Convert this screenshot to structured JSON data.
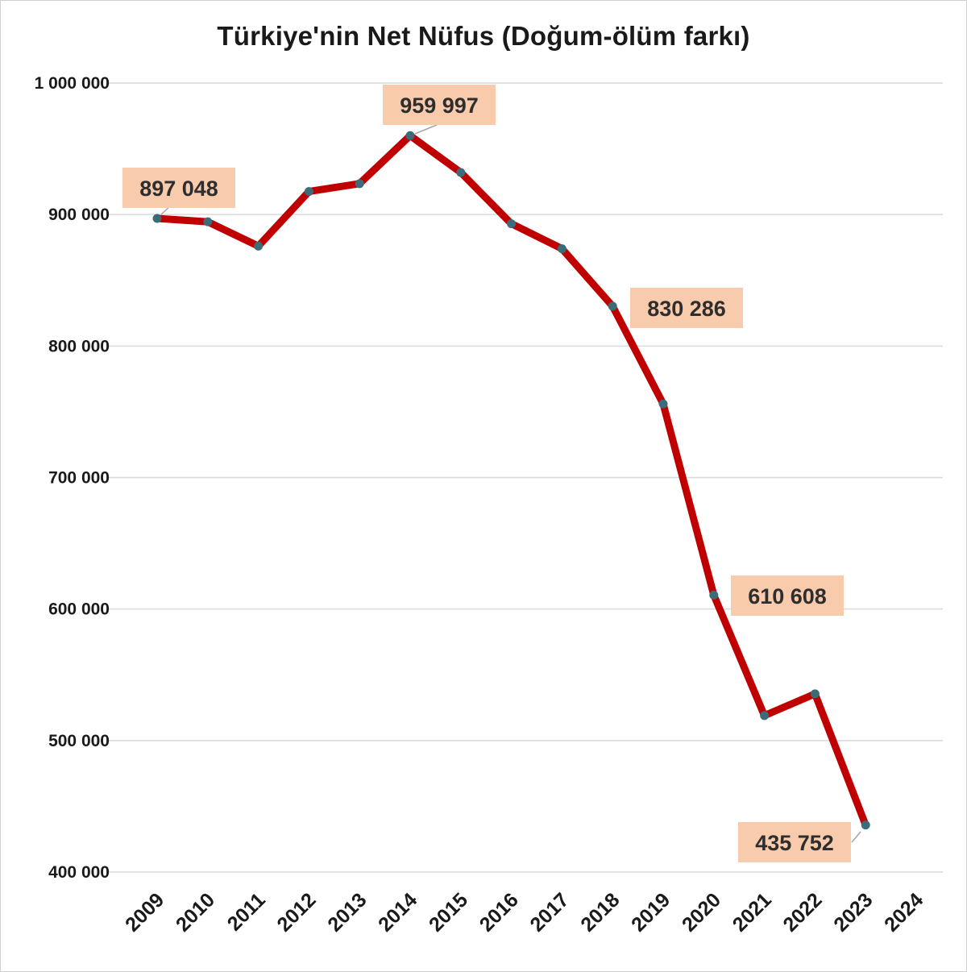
{
  "chart_data": {
    "type": "line",
    "title": "Türkiye'nin Net Nüfus  (Doğum-ölüm farkı)",
    "xlabel": "",
    "ylabel": "",
    "categories": [
      "2009",
      "2010",
      "2011",
      "2012",
      "2013",
      "2014",
      "2015",
      "2016",
      "2017",
      "2018",
      "2019",
      "2020",
      "2021",
      "2022",
      "2023",
      "2024"
    ],
    "series": [
      {
        "values": [
          897048,
          894500,
          876000,
          917500,
          923500,
          959997,
          932000,
          893000,
          874000,
          830286,
          756000,
          610608,
          519000,
          535500,
          435752,
          null
        ]
      }
    ],
    "ylim": [
      400000,
      1000000
    ],
    "yticks": [
      400000,
      500000,
      600000,
      700000,
      800000,
      900000,
      1000000
    ],
    "ytick_labels": [
      "400 000",
      "500 000",
      "600 000",
      "700 000",
      "800 000",
      "900 000",
      "1 000 000"
    ],
    "data_labels": [
      {
        "index": 0,
        "text": "897 048"
      },
      {
        "index": 5,
        "text": "959 997"
      },
      {
        "index": 9,
        "text": "830 286"
      },
      {
        "index": 11,
        "text": "610 608"
      },
      {
        "index": 14,
        "text": "435 752"
      }
    ],
    "grid": "horizontal",
    "legend": "none",
    "colors": {
      "line": "#c00000",
      "marker": "#3d6b78",
      "label_bg": "#f8cbad",
      "grid": "#d9d9d9",
      "leader": "#a6a6a6"
    }
  }
}
